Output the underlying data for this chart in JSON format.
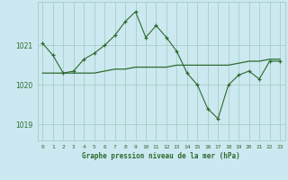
{
  "title": "Graphe pression niveau de la mer (hPa)",
  "bg_color": "#cce8f0",
  "grid_color": "#99ccbb",
  "line_color": "#2d6a2d",
  "x_labels": [
    "0",
    "1",
    "2",
    "3",
    "4",
    "5",
    "6",
    "7",
    "8",
    "9",
    "10",
    "11",
    "12",
    "13",
    "14",
    "15",
    "16",
    "17",
    "18",
    "19",
    "20",
    "21",
    "22",
    "23"
  ],
  "ylim": [
    1018.6,
    1022.1
  ],
  "yticks": [
    1019,
    1020,
    1021
  ],
  "series1_x": [
    0,
    1,
    2,
    3,
    4,
    5,
    6,
    7,
    8,
    9,
    10,
    11,
    12,
    13,
    14,
    15,
    16,
    17,
    18,
    19,
    20,
    21,
    22,
    23
  ],
  "series1_y": [
    1021.05,
    1020.75,
    1020.3,
    1020.35,
    1020.65,
    1020.8,
    1021.0,
    1021.25,
    1021.6,
    1021.85,
    1021.2,
    1021.5,
    1021.2,
    1020.85,
    1020.3,
    1020.0,
    1019.4,
    1019.15,
    1020.0,
    1020.25,
    1020.35,
    1020.15,
    1020.6,
    1020.6
  ],
  "series2_x": [
    0,
    1,
    2,
    3,
    4,
    5,
    6,
    7,
    8,
    9,
    10,
    11,
    12,
    13,
    14,
    15,
    16,
    17,
    18,
    19,
    20,
    21,
    22,
    23
  ],
  "series2_y": [
    1020.3,
    1020.3,
    1020.3,
    1020.3,
    1020.3,
    1020.3,
    1020.35,
    1020.4,
    1020.4,
    1020.45,
    1020.45,
    1020.45,
    1020.45,
    1020.5,
    1020.5,
    1020.5,
    1020.5,
    1020.5,
    1020.5,
    1020.55,
    1020.6,
    1020.6,
    1020.65,
    1020.65
  ]
}
